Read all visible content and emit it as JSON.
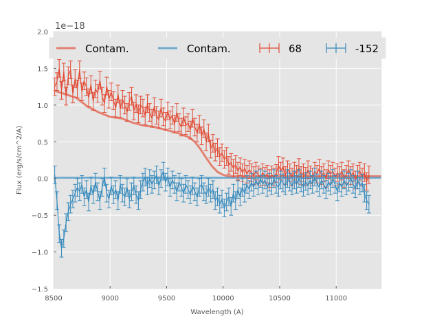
{
  "chart_data": {
    "type": "line",
    "xlabel": "Wavelength (A)",
    "ylabel": "Flux (erg/s/cm^2/A)",
    "y_offset_label": "1e−18",
    "xlim": [
      8500,
      11400
    ],
    "ylim": [
      -1.5,
      2.0
    ],
    "xticks": [
      8500,
      9000,
      9500,
      10000,
      10500,
      11000
    ],
    "xtick_labels": [
      "8500",
      "9000",
      "9500",
      "10000",
      "10500",
      "11000"
    ],
    "yticks": [
      -1.5,
      -1.0,
      -0.5,
      0.0,
      0.5,
      1.0,
      1.5,
      2.0
    ],
    "ytick_labels": [
      "−1.5",
      "−1.0",
      "−0.5",
      "0.0",
      "0.5",
      "1.0",
      "1.5",
      "2.0"
    ],
    "grid": true,
    "legend": {
      "placement": "top",
      "entries": [
        "Contam.",
        "Contam.",
        "68",
        "-152"
      ]
    },
    "colors": {
      "red": "#e24a33",
      "blue": "#348abd",
      "bg": "#e5e5e5",
      "grid": "#ffffff"
    },
    "series": [
      {
        "name": "Contam.",
        "kind": "contam",
        "color": "#e24a33",
        "x": [
          8500,
          8600,
          8700,
          8800,
          8900,
          9000,
          9100,
          9200,
          9300,
          9400,
          9500,
          9600,
          9700,
          9750,
          9800,
          9850,
          9900,
          9950,
          10000,
          10050,
          10100,
          10200,
          10400,
          10600,
          10800,
          11000,
          11200,
          11400
        ],
        "values": [
          1.2,
          1.15,
          1.1,
          0.98,
          0.9,
          0.84,
          0.82,
          0.76,
          0.72,
          0.7,
          0.66,
          0.62,
          0.56,
          0.5,
          0.4,
          0.28,
          0.17,
          0.09,
          0.05,
          0.03,
          0.03,
          0.03,
          0.03,
          0.03,
          0.03,
          0.03,
          0.03,
          0.03
        ]
      },
      {
        "name": "Contam.",
        "kind": "contam",
        "color": "#348abd",
        "x": [
          8500,
          11400
        ],
        "values": [
          0.01,
          0.01
        ]
      },
      {
        "name": "68",
        "kind": "errorbar",
        "color": "#e24a33",
        "x_start": 8510,
        "x_step": 20,
        "values": [
          1.25,
          1.32,
          1.5,
          1.2,
          1.45,
          1.12,
          1.4,
          1.48,
          1.15,
          1.36,
          1.22,
          1.48,
          1.18,
          1.33,
          1.25,
          1.1,
          1.28,
          1.05,
          1.22,
          1.16,
          1.34,
          1.12,
          1.02,
          1.26,
          1.08,
          1.18,
          1.06,
          0.96,
          1.15,
          0.95,
          1.08,
          1.0,
          0.9,
          1.05,
          1.12,
          0.92,
          1.02,
          0.88,
          1.0,
          0.96,
          0.85,
          1.02,
          0.9,
          0.82,
          0.98,
          0.86,
          0.8,
          0.96,
          0.84,
          0.78,
          0.92,
          0.8,
          0.86,
          0.74,
          0.9,
          0.76,
          0.7,
          0.84,
          0.72,
          0.76,
          0.66,
          0.82,
          0.7,
          0.62,
          0.74,
          0.58,
          0.68,
          0.5,
          0.62,
          0.4,
          0.48,
          0.36,
          0.42,
          0.3,
          0.35,
          0.26,
          0.3,
          0.18,
          0.22,
          0.14,
          0.19,
          0.1,
          0.16,
          0.08,
          0.14,
          0.06,
          0.12,
          0.08,
          0.04,
          0.1,
          0.05,
          0.02,
          0.08,
          0.03,
          0.06,
          0.0,
          0.05,
          0.02,
          0.07,
          0.18,
          0.1,
          0.16,
          0.04,
          0.12,
          0.08,
          0.02,
          0.1,
          0.06,
          0.15,
          0.04,
          0.08,
          0.03,
          0.12,
          0.05,
          0.02,
          0.1,
          0.06,
          0.14,
          0.04,
          0.08,
          0.0,
          0.12,
          0.06,
          0.1,
          0.02,
          0.08,
          0.04,
          0.1,
          0.0,
          0.06,
          0.12,
          0.04,
          0.08,
          -0.02,
          0.06,
          0.1,
          0.02,
          0.08,
          -0.04,
          0.05
        ],
        "errors": 0.12
      },
      {
        "name": "-152",
        "kind": "errorbar",
        "color": "#348abd",
        "x_start": 8510,
        "x_step": 20,
        "values": [
          0.05,
          -0.3,
          -0.75,
          -0.95,
          -0.82,
          -0.6,
          -0.45,
          -0.35,
          -0.28,
          -0.2,
          -0.12,
          -0.18,
          -0.08,
          -0.25,
          -0.15,
          -0.32,
          -0.1,
          -0.22,
          -0.05,
          -0.18,
          -0.3,
          -0.12,
          0.02,
          -0.2,
          -0.28,
          -0.1,
          -0.22,
          -0.15,
          -0.3,
          -0.08,
          -0.2,
          -0.25,
          -0.12,
          -0.28,
          -0.18,
          -0.1,
          -0.22,
          -0.3,
          -0.15,
          -0.05,
          0.02,
          -0.1,
          0.0,
          -0.08,
          -0.02,
          0.05,
          -0.1,
          0.0,
          0.1,
          -0.05,
          0.02,
          -0.12,
          -0.02,
          -0.08,
          -0.18,
          -0.05,
          -0.12,
          -0.2,
          -0.08,
          -0.15,
          -0.22,
          -0.1,
          -0.18,
          -0.25,
          -0.12,
          -0.08,
          -0.18,
          -0.22,
          -0.12,
          -0.2,
          -0.15,
          -0.3,
          -0.25,
          -0.35,
          -0.28,
          -0.4,
          -0.32,
          -0.25,
          -0.38,
          -0.2,
          -0.3,
          -0.15,
          -0.25,
          -0.12,
          -0.2,
          -0.08,
          -0.15,
          -0.05,
          -0.12,
          -0.02,
          -0.1,
          0.0,
          -0.08,
          -0.02,
          -0.12,
          -0.05,
          -0.1,
          0.0,
          -0.08,
          -0.12,
          -0.02,
          -0.06,
          -0.1,
          0.0,
          -0.05,
          -0.1,
          -0.02,
          -0.08,
          0.0,
          -0.06,
          -0.12,
          -0.04,
          -0.1,
          -0.02,
          -0.08,
          0.02,
          -0.06,
          -0.12,
          -0.02,
          -0.08,
          -0.15,
          -0.05,
          -0.1,
          0.0,
          -0.08,
          -0.18,
          -0.06,
          -0.12,
          -0.02,
          -0.1,
          -0.05,
          0.0,
          -0.08,
          -0.14,
          -0.02,
          -0.1,
          -0.06,
          -0.2,
          -0.3,
          -0.35
        ],
        "errors": 0.12
      }
    ]
  }
}
